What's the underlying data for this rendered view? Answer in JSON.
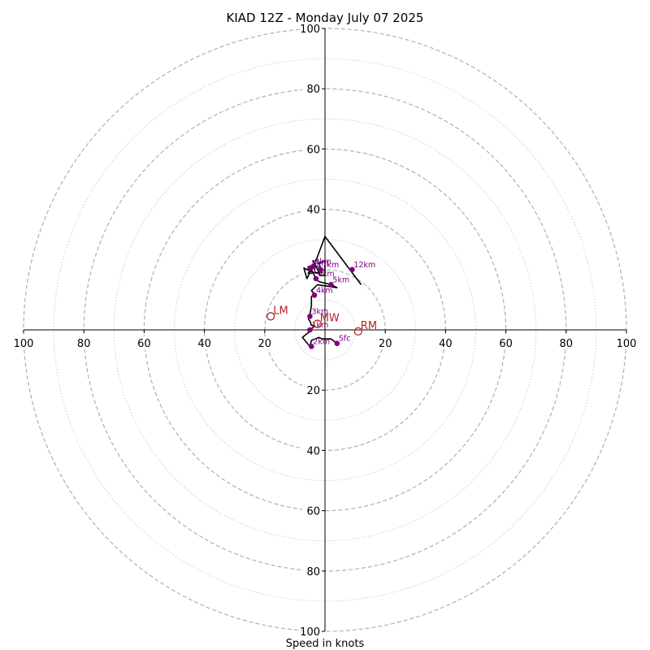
{
  "chart_data": {
    "type": "hodograph",
    "title": "KIAD 12Z - Monday July 07 2025",
    "xlabel": "Speed in knots",
    "range": [
      -100,
      100
    ],
    "rings": [
      20,
      40,
      60,
      80,
      100
    ],
    "minor_rings": [
      10,
      30,
      50,
      70,
      90
    ],
    "tick_labels": {
      "right": [
        "20",
        "40",
        "60",
        "80",
        "100"
      ],
      "left": [
        "20",
        "40",
        "60",
        "80",
        "100"
      ],
      "up": [
        "20",
        "40",
        "60",
        "80",
        "100"
      ],
      "down": [
        "20",
        "40",
        "60",
        "80",
        "100"
      ]
    },
    "grid": true,
    "colors": {
      "trace": "#000000",
      "height_marker": "#800080",
      "storm_motion": "#b22222",
      "grid": "#b0b0b0"
    },
    "trace": [
      [
        4,
        -4.5
      ],
      [
        2,
        -3
      ],
      [
        -1,
        -3
      ],
      [
        -2,
        -2.5
      ],
      [
        -4.5,
        -3.5
      ],
      [
        -5,
        -5.5
      ],
      [
        -7.5,
        -2.5
      ],
      [
        -5,
        -0.5
      ],
      [
        -3.5,
        1.5
      ],
      [
        -4.5,
        1.5
      ],
      [
        -5,
        3
      ],
      [
        -5.5,
        3.5
      ],
      [
        -5,
        5
      ],
      [
        -4.5,
        8
      ],
      [
        -4.5,
        11
      ],
      [
        -3.5,
        12
      ],
      [
        -4.5,
        13
      ],
      [
        -2.5,
        15
      ],
      [
        4,
        14
      ],
      [
        2,
        15
      ],
      [
        -2,
        16
      ],
      [
        -2.5,
        16.5
      ],
      [
        -3,
        17
      ],
      [
        -4.5,
        20
      ],
      [
        -3,
        21
      ],
      [
        -4,
        23
      ],
      [
        -1.5,
        18
      ],
      [
        0,
        18
      ],
      [
        0,
        23
      ],
      [
        -2,
        22
      ],
      [
        -1,
        19
      ],
      [
        -4,
        19
      ],
      [
        -7,
        20.5
      ],
      [
        -6,
        17
      ],
      [
        -3,
        23
      ],
      [
        0,
        31
      ],
      [
        12,
        15
      ]
    ],
    "height_markers": [
      {
        "label": "Sfc",
        "x": 4,
        "y": -4.5
      },
      {
        "label": "1km",
        "x": -5,
        "y": 0
      },
      {
        "label": "2km",
        "x": -4.5,
        "y": -5.5
      },
      {
        "label": "3km",
        "x": -5,
        "y": 4.5
      },
      {
        "label": "4km",
        "x": -3.5,
        "y": 11.5
      },
      {
        "label": "5km",
        "x": 2,
        "y": 15
      },
      {
        "label": "6km",
        "x": -3,
        "y": 17
      },
      {
        "label": "7km",
        "x": -1.5,
        "y": 20
      },
      {
        "label": "8km",
        "x": -5,
        "y": 20.5
      },
      {
        "label": "9km",
        "x": -4,
        "y": 21
      },
      {
        "label": "12km",
        "x": 9,
        "y": 20
      }
    ],
    "storm_motion": [
      {
        "label": "RM",
        "x": 11,
        "y": -0.5
      },
      {
        "label": "LM",
        "x": -18,
        "y": 4.5
      },
      {
        "label": "MW",
        "x": -2.5,
        "y": 2
      }
    ]
  }
}
